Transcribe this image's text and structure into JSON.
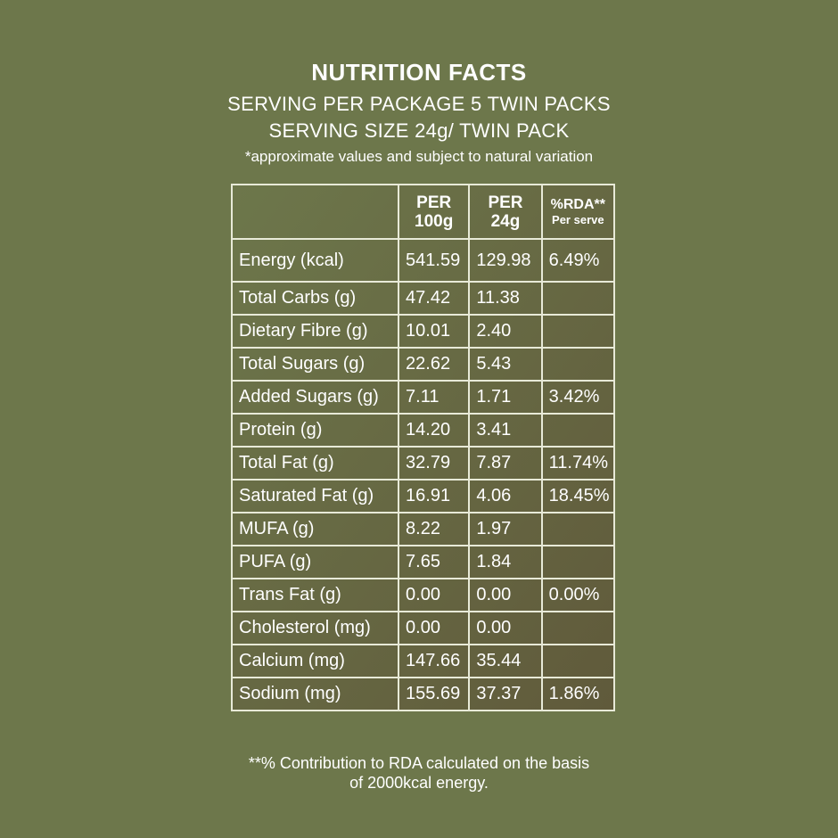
{
  "colors": {
    "background_top": "#6d774b",
    "background_bottom": "#6d774b",
    "text": "#ffffff",
    "table_fill_light": "#6d774b",
    "table_fill_dark": "#605a3b",
    "table_border": "#e8ead8"
  },
  "header": {
    "title": "NUTRITION FACTS",
    "serving_per_package": "SERVING PER PACKAGE 5 TWIN PACKS",
    "serving_size": "SERVING SIZE 24g/ TWIN PACK",
    "note": "*approximate values and subject to natural variation"
  },
  "table": {
    "columns": {
      "per100_line1": "PER",
      "per100_line2": "100g",
      "per24_line1": "PER",
      "per24_line2": "24g",
      "rda_line1": "%RDA**",
      "rda_line2": "Per serve"
    },
    "rows": [
      {
        "name": "Energy (kcal)",
        "per100": "541.59",
        "per24": "129.98",
        "rda": "6.49%"
      },
      {
        "name": "Total Carbs (g)",
        "per100": "47.42",
        "per24": "11.38",
        "rda": ""
      },
      {
        "name": "Dietary Fibre (g)",
        "per100": "10.01",
        "per24": "2.40",
        "rda": ""
      },
      {
        "name": "Total Sugars (g)",
        "per100": "22.62",
        "per24": "5.43",
        "rda": ""
      },
      {
        "name": "Added Sugars (g)",
        "per100": "7.11",
        "per24": "1.71",
        "rda": "3.42%"
      },
      {
        "name": "Protein (g)",
        "per100": "14.20",
        "per24": "3.41",
        "rda": ""
      },
      {
        "name": "Total Fat (g)",
        "per100": "32.79",
        "per24": "7.87",
        "rda": "11.74%"
      },
      {
        "name": "Saturated Fat (g)",
        "per100": "16.91",
        "per24": "4.06",
        "rda": "18.45%"
      },
      {
        "name": "MUFA (g)",
        "per100": "8.22",
        "per24": "1.97",
        "rda": ""
      },
      {
        "name": "PUFA (g)",
        "per100": "7.65",
        "per24": "1.84",
        "rda": ""
      },
      {
        "name": "Trans Fat (g)",
        "per100": "0.00",
        "per24": "0.00",
        "rda": "0.00%"
      },
      {
        "name": "Cholesterol (mg)",
        "per100": "0.00",
        "per24": "0.00",
        "rda": ""
      },
      {
        "name": "Calcium (mg)",
        "per100": "147.66",
        "per24": "35.44",
        "rda": ""
      },
      {
        "name": "Sodium (mg)",
        "per100": "155.69",
        "per24": "37.37",
        "rda": "1.86%"
      }
    ]
  },
  "footer": {
    "line1": "**% Contribution to RDA calculated on the basis",
    "line2": "of 2000kcal energy."
  }
}
